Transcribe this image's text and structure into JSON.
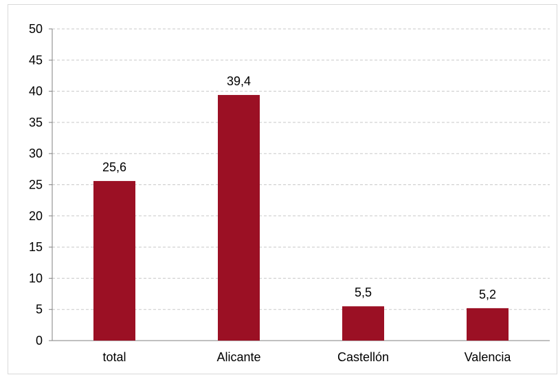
{
  "chart_data": {
    "type": "bar",
    "categories": [
      "total",
      "Alicante",
      "Castellón",
      "Valencia"
    ],
    "values": [
      25.6,
      39.4,
      5.5,
      5.2
    ],
    "data_labels": [
      "25,6",
      "39,4",
      "5,5",
      "5,2"
    ],
    "yticks": [
      0,
      5,
      10,
      15,
      20,
      25,
      30,
      35,
      40,
      45,
      50
    ],
    "ylim": [
      0,
      50
    ],
    "grid": true,
    "legend": "none",
    "title": "",
    "xlabel": "",
    "ylabel": "",
    "bar_color": "#9b1024",
    "grid_color": "#c8c8c8",
    "axis_color": "#808080"
  }
}
